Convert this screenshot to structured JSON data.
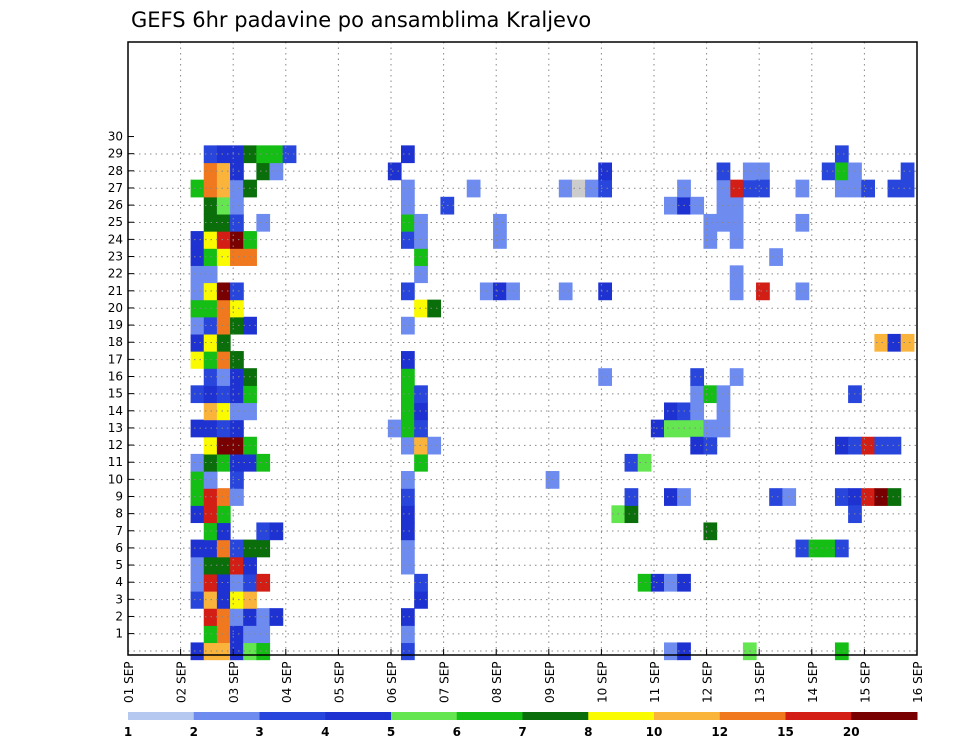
{
  "chart_data": {
    "type": "heatmap",
    "title": "GEFS 6hr padavine po ansamblima Kraljevo",
    "xlabel": "",
    "ylabel": "",
    "x_ticks": [
      "01 SEP",
      "02 SEP",
      "03 SEP",
      "04 SEP",
      "05 SEP",
      "06 SEP",
      "07 SEP",
      "08 SEP",
      "09 SEP",
      "10 SEP",
      "11 SEP",
      "12 SEP",
      "13 SEP",
      "14 SEP",
      "15 SEP",
      "16 SEP"
    ],
    "y_ticks": [
      "1",
      "2",
      "3",
      "4",
      "5",
      "6",
      "7",
      "8",
      "9",
      "10",
      "11",
      "12",
      "13",
      "14",
      "15",
      "16",
      "17",
      "18",
      "19",
      "20",
      "21",
      "22",
      "23",
      "24",
      "25",
      "26",
      "27",
      "28",
      "29",
      "30"
    ],
    "x_range_days": [
      0,
      15
    ],
    "y_range_members": [
      0,
      30
    ],
    "step_hours": 6,
    "grid": "dotted",
    "colorbar": {
      "position": "bottom",
      "bounds": [
        "1",
        "2",
        "3",
        "4",
        "5",
        "6",
        "7",
        "8",
        "10",
        "12",
        "15",
        "20"
      ],
      "colors": [
        "#b4c8f0",
        "#6e8cf0",
        "#2846dc",
        "#1e32d2",
        "#64e650",
        "#14be14",
        "#0a6e0a",
        "#fafa00",
        "#fab43c",
        "#f0781e",
        "#d21e14",
        "#780000"
      ]
    },
    "cells": [
      [
        0,
        4,
        3
      ],
      [
        0,
        5,
        8
      ],
      [
        0,
        6,
        8
      ],
      [
        0,
        7,
        3
      ],
      [
        0,
        8,
        4
      ],
      [
        0,
        9,
        5
      ],
      [
        1,
        5,
        5
      ],
      [
        1,
        6,
        9
      ],
      [
        1,
        7,
        3
      ],
      [
        1,
        8,
        1
      ],
      [
        1,
        9,
        1
      ],
      [
        2,
        5,
        10
      ],
      [
        2,
        6,
        9
      ],
      [
        2,
        7,
        1
      ],
      [
        2,
        8,
        3
      ],
      [
        2,
        9,
        1
      ],
      [
        2,
        10,
        3
      ],
      [
        3,
        4,
        2
      ],
      [
        3,
        5,
        8
      ],
      [
        3,
        6,
        3
      ],
      [
        3,
        7,
        7
      ],
      [
        3,
        8,
        8
      ],
      [
        4,
        4,
        1
      ],
      [
        4,
        5,
        10
      ],
      [
        4,
        6,
        3
      ],
      [
        4,
        7,
        1
      ],
      [
        4,
        8,
        2
      ],
      [
        4,
        9,
        10
      ],
      [
        5,
        4,
        1
      ],
      [
        5,
        5,
        6
      ],
      [
        5,
        6,
        6
      ],
      [
        5,
        7,
        10
      ],
      [
        5,
        8,
        3
      ],
      [
        6,
        4,
        3
      ],
      [
        6,
        5,
        3
      ],
      [
        6,
        6,
        9
      ],
      [
        6,
        7,
        2
      ],
      [
        6,
        8,
        6
      ],
      [
        6,
        9,
        6
      ],
      [
        7,
        5,
        5
      ],
      [
        7,
        6,
        3
      ],
      [
        7,
        9,
        2
      ],
      [
        7,
        10,
        3
      ],
      [
        8,
        4,
        3
      ],
      [
        8,
        5,
        10
      ],
      [
        8,
        6,
        5
      ],
      [
        9,
        4,
        5
      ],
      [
        9,
        5,
        10
      ],
      [
        9,
        6,
        9
      ],
      [
        9,
        7,
        1
      ],
      [
        10,
        4,
        5
      ],
      [
        10,
        5,
        1
      ],
      [
        10,
        7,
        2
      ],
      [
        11,
        4,
        1
      ],
      [
        11,
        5,
        6
      ],
      [
        11,
        6,
        5
      ],
      [
        11,
        7,
        3
      ],
      [
        11,
        8,
        3
      ],
      [
        11,
        9,
        5
      ],
      [
        12,
        5,
        7
      ],
      [
        12,
        6,
        11
      ],
      [
        12,
        7,
        11
      ],
      [
        12,
        8,
        5
      ],
      [
        13,
        4,
        3
      ],
      [
        13,
        5,
        3
      ],
      [
        13,
        6,
        2
      ],
      [
        13,
        7,
        3
      ],
      [
        14,
        5,
        8
      ],
      [
        14,
        6,
        7
      ],
      [
        14,
        7,
        1
      ],
      [
        14,
        8,
        1
      ],
      [
        15,
        4,
        2
      ],
      [
        15,
        5,
        3
      ],
      [
        15,
        6,
        2
      ],
      [
        15,
        7,
        3
      ],
      [
        15,
        8,
        5
      ],
      [
        16,
        5,
        2
      ],
      [
        16,
        6,
        1
      ],
      [
        16,
        7,
        3
      ],
      [
        16,
        8,
        6
      ],
      [
        17,
        4,
        7
      ],
      [
        17,
        5,
        5
      ],
      [
        17,
        6,
        9
      ],
      [
        17,
        7,
        6
      ],
      [
        18,
        4,
        3
      ],
      [
        18,
        5,
        7
      ],
      [
        18,
        6,
        6
      ],
      [
        19,
        4,
        1
      ],
      [
        19,
        5,
        2
      ],
      [
        19,
        6,
        9
      ],
      [
        19,
        7,
        6
      ],
      [
        19,
        8,
        3
      ],
      [
        20,
        4,
        5
      ],
      [
        20,
        5,
        5
      ],
      [
        20,
        6,
        9
      ],
      [
        20,
        7,
        7
      ],
      [
        21,
        4,
        1
      ],
      [
        21,
        5,
        7
      ],
      [
        21,
        6,
        11
      ],
      [
        21,
        7,
        2
      ],
      [
        22,
        4,
        1
      ],
      [
        22,
        5,
        1
      ],
      [
        23,
        4,
        3
      ],
      [
        23,
        5,
        5
      ],
      [
        23,
        6,
        7
      ],
      [
        23,
        7,
        9
      ],
      [
        23,
        8,
        9
      ],
      [
        24,
        4,
        3
      ],
      [
        24,
        5,
        7
      ],
      [
        24,
        6,
        10
      ],
      [
        24,
        7,
        11
      ],
      [
        24,
        8,
        5
      ],
      [
        25,
        5,
        6
      ],
      [
        25,
        6,
        6
      ],
      [
        25,
        7,
        2
      ],
      [
        25,
        9,
        1
      ],
      [
        26,
        5,
        6
      ],
      [
        26,
        6,
        4
      ],
      [
        26,
        7,
        1
      ],
      [
        27,
        4,
        5
      ],
      [
        27,
        5,
        9
      ],
      [
        27,
        6,
        8
      ],
      [
        27,
        7,
        1
      ],
      [
        27,
        8,
        6
      ],
      [
        28,
        5,
        9
      ],
      [
        28,
        6,
        8
      ],
      [
        28,
        7,
        3
      ],
      [
        28,
        9,
        6
      ],
      [
        28,
        10,
        1
      ],
      [
        29,
        5,
        2
      ],
      [
        29,
        6,
        3
      ],
      [
        29,
        7,
        3
      ],
      [
        29,
        8,
        6
      ],
      [
        29,
        9,
        5
      ],
      [
        29,
        10,
        5
      ],
      [
        29,
        11,
        2
      ],
      [
        0,
        20,
        2
      ],
      [
        1,
        20,
        1
      ],
      [
        2,
        20,
        3
      ],
      [
        3,
        21,
        3
      ],
      [
        4,
        21,
        2
      ],
      [
        5,
        20,
        1
      ],
      [
        6,
        20,
        1
      ],
      [
        7,
        20,
        3
      ],
      [
        8,
        20,
        3
      ],
      [
        9,
        20,
        2
      ],
      [
        10,
        20,
        1
      ],
      [
        11,
        21,
        5
      ],
      [
        12,
        20,
        1
      ],
      [
        12,
        21,
        8
      ],
      [
        12,
        22,
        1
      ],
      [
        13,
        19,
        1
      ],
      [
        13,
        20,
        5
      ],
      [
        13,
        21,
        2
      ],
      [
        14,
        20,
        5
      ],
      [
        14,
        21,
        3
      ],
      [
        15,
        20,
        5
      ],
      [
        15,
        21,
        2
      ],
      [
        16,
        20,
        5
      ],
      [
        17,
        20,
        3
      ],
      [
        19,
        20,
        1
      ],
      [
        21,
        20,
        2
      ],
      [
        22,
        21,
        1
      ],
      [
        23,
        21,
        5
      ],
      [
        24,
        20,
        2
      ],
      [
        24,
        21,
        1
      ],
      [
        25,
        20,
        5
      ],
      [
        25,
        21,
        1
      ],
      [
        26,
        20,
        1
      ],
      [
        27,
        20,
        1
      ],
      [
        28,
        19,
        3
      ],
      [
        29,
        20,
        3
      ],
      [
        21,
        26,
        1
      ],
      [
        21,
        27,
        3
      ],
      [
        21,
        28,
        1
      ],
      [
        24,
        27,
        1
      ],
      [
        25,
        27,
        1
      ],
      [
        26,
        23,
        2
      ],
      [
        27,
        25,
        1
      ],
      [
        20,
        21,
        7
      ],
      [
        20,
        22,
        6
      ],
      [
        10,
        31,
        1
      ],
      [
        21,
        32,
        1
      ],
      [
        27,
        32,
        1
      ],
      [
        27,
        33,
        12
      ],
      [
        27,
        34,
        1
      ],
      [
        16,
        35,
        1
      ],
      [
        21,
        35,
        3
      ],
      [
        27,
        35,
        2
      ],
      [
        28,
        35,
        3
      ],
      [
        8,
        36,
        4
      ],
      [
        8,
        37,
        6
      ],
      [
        9,
        37,
        2
      ],
      [
        11,
        37,
        2
      ],
      [
        11,
        38,
        4
      ],
      [
        4,
        38,
        5
      ],
      [
        4,
        39,
        3
      ],
      [
        4,
        40,
        1
      ],
      [
        4,
        41,
        3
      ],
      [
        13,
        39,
        3
      ],
      [
        13,
        40,
        4
      ],
      [
        13,
        41,
        4
      ],
      [
        13,
        42,
        4
      ],
      [
        0,
        40,
        1
      ],
      [
        0,
        41,
        3
      ],
      [
        9,
        40,
        3
      ],
      [
        9,
        41,
        1
      ],
      [
        14,
        40,
        3
      ],
      [
        14,
        41,
        2
      ],
      [
        14,
        42,
        1
      ],
      [
        26,
        40,
        1
      ],
      [
        26,
        41,
        3
      ],
      [
        27,
        41,
        1
      ],
      [
        12,
        42,
        3
      ],
      [
        12,
        43,
        2
      ],
      [
        13,
        43,
        1
      ],
      [
        15,
        42,
        1
      ],
      [
        15,
        43,
        5
      ],
      [
        16,
        42,
        2
      ],
      [
        26,
        42,
        1
      ],
      [
        7,
        43,
        6
      ],
      [
        13,
        44,
        1
      ],
      [
        14,
        44,
        1
      ],
      [
        15,
        43,
        1
      ],
      [
        15,
        44,
        1
      ],
      [
        25,
        44,
        1
      ],
      [
        0,
        46,
        4
      ],
      [
        16,
        45,
        1
      ],
      [
        21,
        45,
        1
      ],
      [
        22,
        45,
        1
      ],
      [
        25,
        45,
        1
      ],
      [
        26,
        45,
        1
      ],
      [
        27,
        45,
        10
      ],
      [
        27,
        46,
        2
      ],
      [
        24,
        45,
        1
      ],
      [
        28,
        46,
        1
      ],
      [
        28,
        47,
        1
      ],
      [
        9,
        48,
        2
      ],
      [
        27,
        47,
        2
      ],
      [
        23,
        48,
        1
      ],
      [
        21,
        50,
        1
      ],
      [
        25,
        50,
        1
      ],
      [
        27,
        50,
        1
      ],
      [
        24,
        43,
        1
      ],
      [
        25,
        43,
        1
      ],
      [
        26,
        44,
        1
      ],
      [
        27,
        44,
        1
      ],
      [
        28,
        44,
        2
      ],
      [
        9,
        49,
        1
      ],
      [
        21,
        47,
        10
      ],
      [
        27,
        47,
        10
      ],
      [
        6,
        50,
        2
      ],
      [
        6,
        51,
        5
      ],
      [
        6,
        52,
        5
      ],
      [
        6,
        53,
        2
      ],
      [
        9,
        53,
        2
      ],
      [
        9,
        54,
        3
      ],
      [
        9,
        55,
        10
      ],
      [
        9,
        56,
        11
      ],
      [
        9,
        57,
        6
      ],
      [
        12,
        53,
        3
      ],
      [
        12,
        54,
        2
      ],
      [
        12,
        55,
        10
      ],
      [
        12,
        56,
        2
      ],
      [
        12,
        57,
        2
      ],
      [
        8,
        54,
        2
      ],
      [
        15,
        54,
        2
      ],
      [
        28,
        52,
        2
      ],
      [
        29,
        53,
        2
      ],
      [
        27,
        53,
        1
      ],
      [
        27,
        54,
        1
      ],
      [
        27,
        55,
        2
      ],
      [
        28,
        53,
        5
      ],
      [
        28,
        54,
        1
      ],
      [
        18,
        56,
        8
      ],
      [
        18,
        57,
        3
      ],
      [
        18,
        58,
        8
      ],
      [
        18,
        60,
        1
      ],
      [
        0,
        53,
        5
      ],
      [
        27,
        57,
        2
      ],
      [
        27,
        58,
        2
      ],
      [
        29,
        53,
        1
      ],
      [
        28,
        58,
        2
      ],
      [
        25,
        62,
        1
      ],
      [
        4,
        63,
        1
      ],
      [
        4,
        64,
        1
      ],
      [
        5,
        64,
        2
      ],
      [
        6,
        64,
        2
      ],
      [
        4,
        65,
        2
      ],
      [
        4,
        66,
        1
      ],
      [
        3,
        66,
        6
      ],
      [
        3,
        67,
        1
      ],
      [
        9,
        63,
        2
      ],
      [
        9,
        64,
        8
      ],
      [
        9,
        65,
        1
      ],
      [
        21,
        62,
        1
      ],
      [
        21,
        63,
        2
      ],
      [
        21,
        64,
        6
      ],
      [
        21,
        65,
        1
      ],
      [
        24,
        62,
        2
      ],
      [
        24,
        63,
        2
      ],
      [
        24,
        64,
        2
      ],
      [
        23,
        64,
        3
      ],
      [
        23,
        65,
        11
      ],
      [
        23,
        66,
        2
      ],
      [
        24,
        65,
        1
      ],
      [
        24,
        66,
        1
      ],
      [
        24,
        67,
        1
      ],
      [
        27,
        62,
        2
      ],
      [
        27,
        63,
        6
      ],
      [
        27,
        64,
        1
      ],
      [
        0,
        67,
        1
      ],
      [
        21,
        70,
        11
      ]
    ]
  }
}
